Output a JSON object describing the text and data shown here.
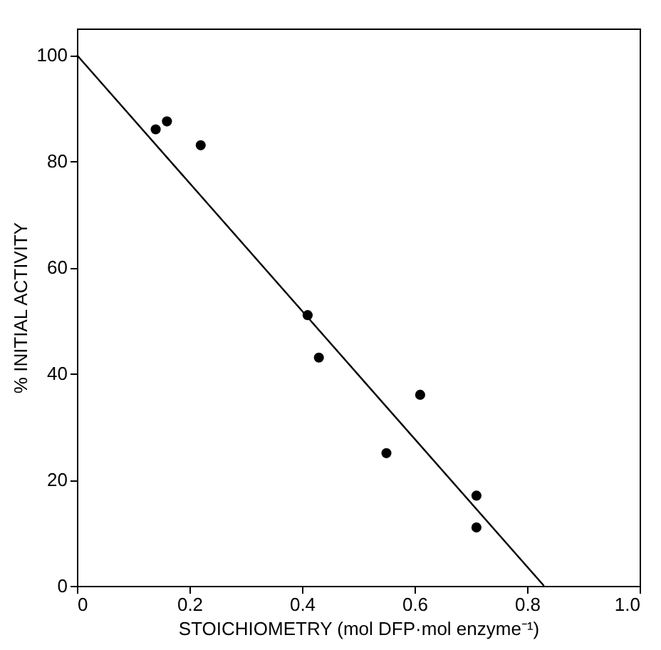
{
  "chart_data": {
    "type": "scatter",
    "xlabel": "STOICHIOMETRY  (mol DFP·mol enzyme⁻¹)",
    "ylabel": "% INITIAL ACTIVITY",
    "xlim": [
      0,
      1.0
    ],
    "ylim": [
      0,
      105
    ],
    "xticks": [
      0,
      0.2,
      0.4,
      0.6,
      0.8,
      {
        "value": 1,
        "label": "1.0"
      }
    ],
    "yticks": [
      0,
      20,
      40,
      60,
      80,
      100
    ],
    "grid": false,
    "marker": "circle",
    "series": [
      {
        "type": "scatter",
        "color": "#000000",
        "x": [
          0.14,
          0.16,
          0.22,
          0.41,
          0.43,
          0.55,
          0.61,
          0.71,
          0.71
        ],
        "values": [
          86,
          87.5,
          83,
          51,
          43,
          25,
          36,
          17,
          11
        ]
      },
      {
        "type": "line",
        "color": "#000000",
        "x": [
          0,
          0.83
        ],
        "values": [
          100,
          0
        ],
        "marker": "none",
        "line_style": "solid"
      }
    ]
  }
}
